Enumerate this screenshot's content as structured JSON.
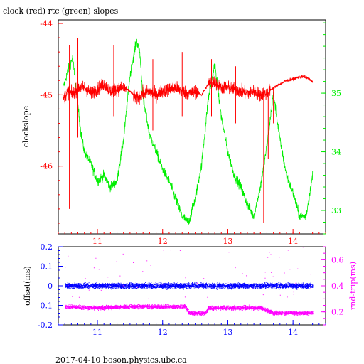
{
  "title": "clock (red) rtc (green) slopes",
  "footer": "2017-04-10  boson.physics.ubc.ca",
  "colors": {
    "clock": "#ff0000",
    "rtc": "#00ee00",
    "offset": "#0000ff",
    "rndtrip": "#ff00ff",
    "frame": "#000000"
  },
  "chart_data": [
    {
      "type": "line",
      "title": "clock (red) rtc (green) slopes",
      "xlim": [
        10.4,
        14.5
      ],
      "x_ticks": [
        "11",
        "12",
        "13",
        "14"
      ],
      "y_left": {
        "label": "clockslope",
        "ylim": [
          -46.95,
          -43.95
        ],
        "ticks": [
          "-44",
          "-45",
          "-46"
        ]
      },
      "y_right": {
        "label": "",
        "ylim": [
          32.6,
          36.25
        ],
        "ticks": [
          "35",
          "34",
          "33"
        ]
      },
      "series": [
        {
          "name": "clock",
          "axis": "left",
          "x": [
            10.48,
            10.55,
            10.62,
            10.7,
            10.8,
            10.9,
            11.0,
            11.1,
            11.2,
            11.3,
            11.4,
            11.5,
            11.6,
            11.7,
            11.8,
            11.9,
            12.0,
            12.1,
            12.2,
            12.3,
            12.4,
            12.5,
            12.6,
            12.7,
            12.8,
            12.9,
            13.0,
            13.1,
            13.2,
            13.3,
            13.4,
            13.5,
            13.6,
            13.7,
            13.8,
            13.9,
            14.0,
            14.1,
            14.2,
            14.3
          ],
          "y": [
            -45.05,
            -44.95,
            -45.0,
            -44.9,
            -44.9,
            -44.98,
            -44.92,
            -44.85,
            -44.95,
            -44.92,
            -44.9,
            -44.95,
            -45.05,
            -44.98,
            -44.95,
            -45.0,
            -44.95,
            -44.92,
            -44.9,
            -44.95,
            -44.98,
            -44.95,
            -45.0,
            -44.85,
            -44.82,
            -44.9,
            -44.9,
            -44.92,
            -44.95,
            -44.98,
            -44.95,
            -45.0,
            -44.98,
            -44.9,
            -44.85,
            -44.8,
            -44.78,
            -44.75,
            -44.75,
            -44.82
          ]
        },
        {
          "name": "rtc",
          "axis": "right",
          "x": [
            10.48,
            10.55,
            10.62,
            10.7,
            10.75,
            10.8,
            10.9,
            11.0,
            11.1,
            11.2,
            11.3,
            11.4,
            11.5,
            11.6,
            11.65,
            11.7,
            11.8,
            11.9,
            12.0,
            12.1,
            12.2,
            12.3,
            12.4,
            12.5,
            12.6,
            12.7,
            12.8,
            12.9,
            13.0,
            13.1,
            13.2,
            13.3,
            13.4,
            13.5,
            13.6,
            13.7,
            13.8,
            13.9,
            14.0,
            14.1,
            14.2,
            14.3
          ],
          "y": [
            35.1,
            35.4,
            35.6,
            34.8,
            34.3,
            34.0,
            33.8,
            33.5,
            33.6,
            33.4,
            33.5,
            34.2,
            35.3,
            35.9,
            35.7,
            34.9,
            34.3,
            34.0,
            33.7,
            33.5,
            33.2,
            32.9,
            32.8,
            33.2,
            33.8,
            34.9,
            35.5,
            34.6,
            34.0,
            33.6,
            33.4,
            33.1,
            32.9,
            33.4,
            34.1,
            35.0,
            34.2,
            33.6,
            33.3,
            32.9,
            32.9,
            33.6
          ]
        }
      ]
    },
    {
      "type": "scatter",
      "title": "",
      "xlim": [
        10.4,
        14.5
      ],
      "x_ticks": [
        "11",
        "12",
        "13",
        "14"
      ],
      "y_left": {
        "label": "offset(ms)",
        "ylim": [
          -0.2,
          0.2
        ],
        "ticks": [
          "0.2",
          "0.1",
          "0",
          "-0.1",
          "-0.2"
        ]
      },
      "y_right": {
        "label": "rnd-trip(ms)",
        "ylim": [
          0.1,
          0.7
        ],
        "ticks": [
          "0.6",
          "0.4",
          "0.2"
        ]
      },
      "series": [
        {
          "name": "offset",
          "axis": "left",
          "x": [
            10.5,
            11.0,
            11.5,
            12.0,
            12.4,
            12.7,
            13.0,
            13.5,
            13.7,
            14.0,
            14.3
          ],
          "y": [
            0.0,
            0.0,
            0.0,
            0.0,
            0.0,
            0.0,
            0.0,
            0.0,
            0.0,
            0.0,
            0.0
          ]
        },
        {
          "name": "rnd-trip",
          "axis": "right",
          "x": [
            10.5,
            11.0,
            11.5,
            12.0,
            12.35,
            12.4,
            12.65,
            12.7,
            13.0,
            13.5,
            13.7,
            14.0,
            14.3
          ],
          "y": [
            0.24,
            0.23,
            0.24,
            0.24,
            0.24,
            0.19,
            0.19,
            0.23,
            0.23,
            0.23,
            0.19,
            0.19,
            0.19
          ]
        }
      ]
    }
  ]
}
